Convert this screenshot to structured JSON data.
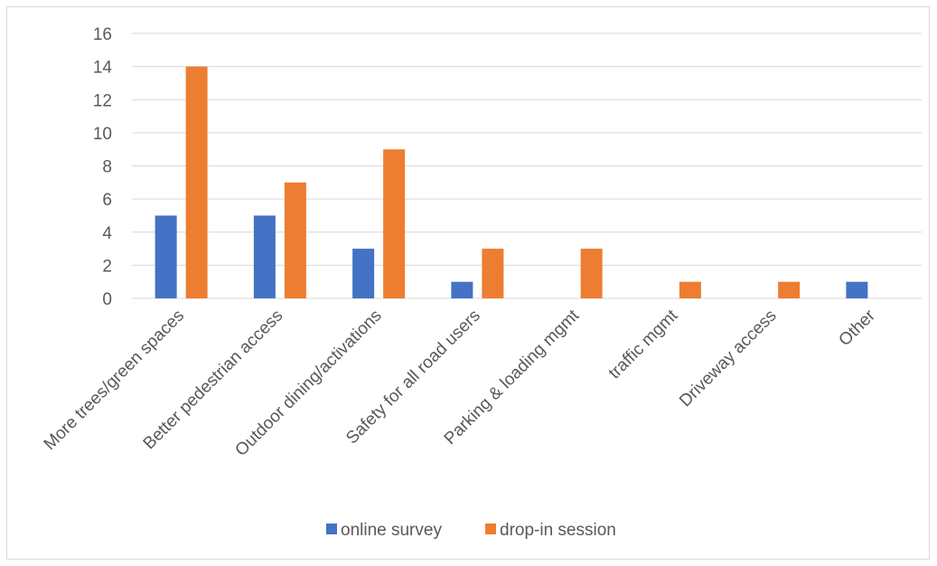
{
  "chart_data": {
    "type": "bar",
    "title": "",
    "xlabel": "",
    "ylabel": "",
    "categories": [
      "More trees/green spaces",
      "Better pedestrian access",
      "Outdoor dining/activations",
      "Safety for all road users",
      "Parking & loading mgmt",
      "traffic mgmt",
      "Driveway access",
      "Other"
    ],
    "series": [
      {
        "name": "online survey",
        "color": "#4472c4",
        "values": [
          5,
          5,
          3,
          1,
          0,
          0,
          0,
          1
        ]
      },
      {
        "name": "drop-in session",
        "color": "#ed7d31",
        "values": [
          14,
          7,
          9,
          3,
          3,
          1,
          1,
          0
        ]
      }
    ],
    "ylim": [
      0,
      16
    ],
    "yticks": [
      0,
      2,
      4,
      6,
      8,
      10,
      12,
      14,
      16
    ],
    "grid": true,
    "legend_position": "bottom"
  }
}
